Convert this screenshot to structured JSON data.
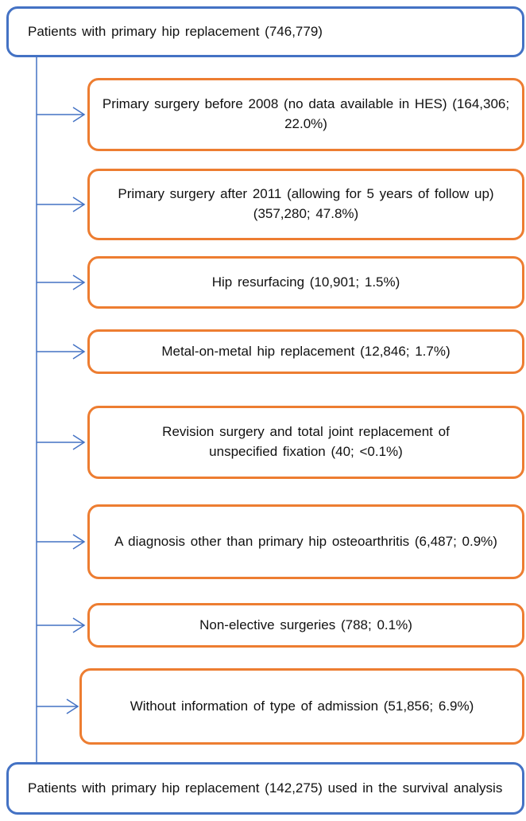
{
  "source": {
    "label": "Patients with primary hip replacement (746,779)"
  },
  "exclusions": [
    {
      "label": "Primary surgery before 2008 (no data available in HES) (164,306; 22.0%)"
    },
    {
      "label": "Primary surgery after 2011 (allowing for 5 years of follow up) (357,280; 47.8%)"
    },
    {
      "label": "Hip resurfacing (10,901; 1.5%)"
    },
    {
      "label": "Metal-on-metal hip replacement (12,846; 1.7%)"
    },
    {
      "label": "Revision surgery and total joint replacement of unspecified fixation (40; <0.1%)"
    },
    {
      "label": "A diagnosis other than primary hip osteoarthritis (6,487; 0.9%)"
    },
    {
      "label": "Non-elective surgeries (788; 0.1%)"
    },
    {
      "label": "Without information of type of admission (51,856; 6.9%)"
    }
  ],
  "result": {
    "label": "Patients with primary hip replacement (142,275) used in the survival analysis"
  }
}
